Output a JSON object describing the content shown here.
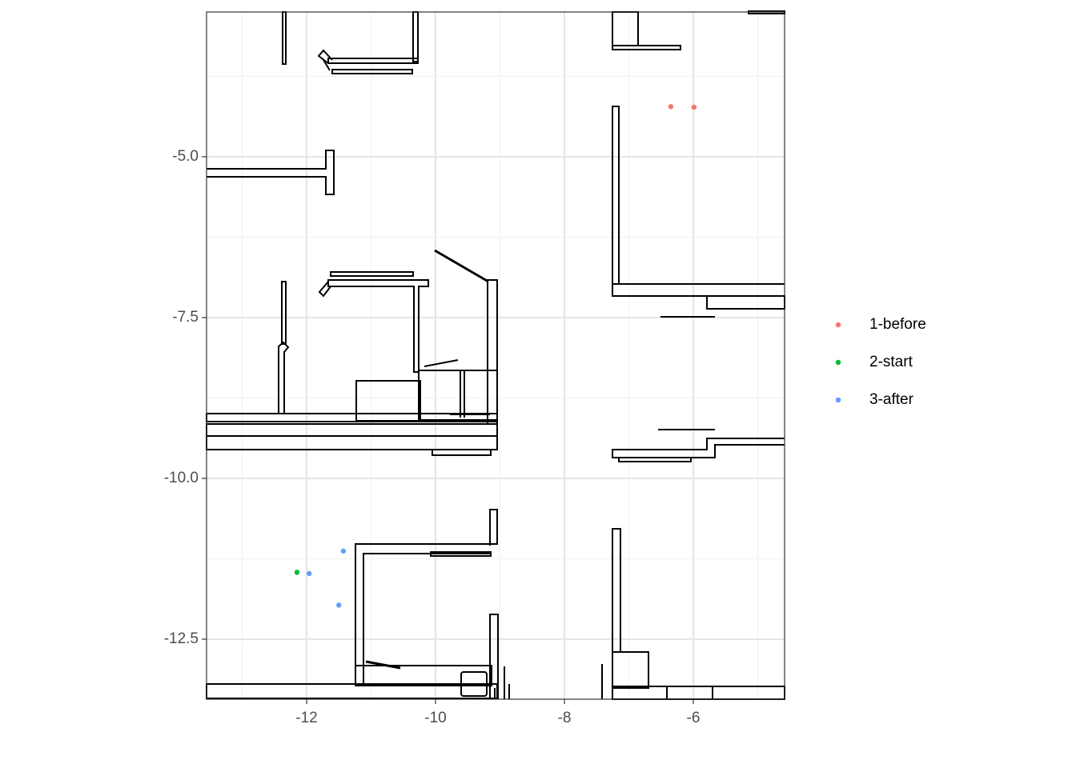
{
  "chart_data": {
    "type": "scatter",
    "series": [
      {
        "name": "1-before",
        "color": "#F8766D",
        "x": [
          -6.35,
          -5.99
        ],
        "y": [
          -4.22,
          -4.23
        ]
      },
      {
        "name": "2-start",
        "color": "#00BA38",
        "x": [
          -12.15
        ],
        "y": [
          -11.46
        ]
      },
      {
        "name": "3-after",
        "color": "#619CFF",
        "x": [
          -11.96,
          -11.43,
          -11.5
        ],
        "y": [
          -11.48,
          -11.13,
          -11.97
        ]
      }
    ],
    "xlim": [
      -13.553,
      -4.584
    ],
    "ylim": [
      -13.433,
      -2.749
    ],
    "xticks": [
      -12,
      -10,
      -8,
      -6
    ],
    "yticks": [
      {
        "value": -5,
        "label": "-5.0"
      },
      -7.5,
      {
        "value": -10,
        "label": "-10.0"
      },
      -12.5
    ],
    "x_minor_breaks": [
      -13,
      -11,
      -9,
      -7,
      -5
    ],
    "y_minor_breaks": [
      -3.75,
      -6.25,
      -8.75,
      -11.25
    ],
    "grid": true
  }
}
